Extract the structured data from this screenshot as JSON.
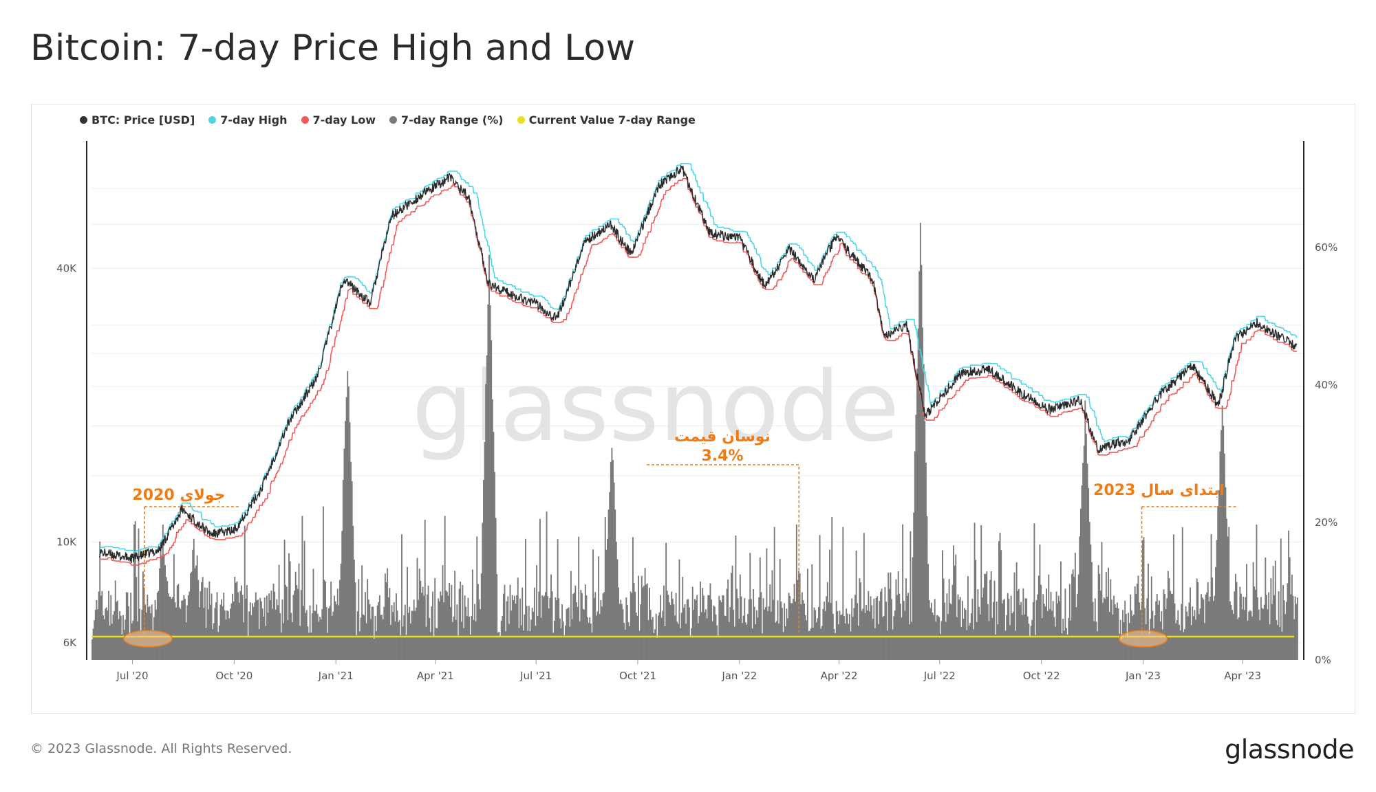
{
  "title": "Bitcoin: 7-day Price High and Low",
  "footer": {
    "copyright": "© 2023 Glassnode. All Rights Reserved.",
    "logo": "glassnode"
  },
  "watermark": "glassnode",
  "colors": {
    "price": "#2b2b2b",
    "high": "#4fd6e6",
    "low": "#f25a5a",
    "range": "#7a7a7a",
    "current": "#e8e020",
    "annotation": "#f07b14"
  },
  "legend": [
    {
      "label": "BTC: Price [USD]",
      "color": "#333333"
    },
    {
      "label": "7-day High",
      "color": "#4fd6e6"
    },
    {
      "label": "7-day Low",
      "color": "#f25a5a"
    },
    {
      "label": "7-day Range (%)",
      "color": "#7a7a7a"
    },
    {
      "label": "Current Value 7-day Range",
      "color": "#e8e020"
    }
  ],
  "chart_data": {
    "type": "line",
    "x_range": [
      "2020-05-25",
      "2023-05-25"
    ],
    "x_ticks": [
      "Jul '20",
      "Oct '20",
      "Jan '21",
      "Apr '21",
      "Jul '21",
      "Oct '21",
      "Jan '22",
      "Apr '22",
      "Jul '22",
      "Oct '22",
      "Jan '23",
      "Apr '23"
    ],
    "y_left": {
      "scale": "log",
      "range": [
        5500,
        75000
      ],
      "ticks": [
        "6K",
        "10K",
        "40K"
      ]
    },
    "y_right": {
      "scale": "linear",
      "range": [
        0,
        75
      ],
      "ticks": [
        "0%",
        "20%",
        "40%",
        "60%"
      ]
    },
    "price_series": {
      "name": "BTC: Price [USD]",
      "x": [
        "2020-06-01",
        "2020-07-01",
        "2020-07-25",
        "2020-08-15",
        "2020-09-10",
        "2020-10-01",
        "2020-10-25",
        "2020-11-20",
        "2020-12-15",
        "2021-01-08",
        "2021-02-01",
        "2021-02-20",
        "2021-03-15",
        "2021-04-14",
        "2021-05-01",
        "2021-05-19",
        "2021-06-10",
        "2021-07-01",
        "2021-07-20",
        "2021-08-15",
        "2021-09-06",
        "2021-09-25",
        "2021-10-20",
        "2021-11-10",
        "2021-12-05",
        "2022-01-01",
        "2022-01-24",
        "2022-02-15",
        "2022-03-10",
        "2022-03-29",
        "2022-05-01",
        "2022-05-12",
        "2022-06-01",
        "2022-06-18",
        "2022-07-20",
        "2022-08-15",
        "2022-09-10",
        "2022-10-10",
        "2022-11-05",
        "2022-11-21",
        "2022-12-20",
        "2023-01-15",
        "2023-02-15",
        "2023-03-10",
        "2023-03-25",
        "2023-04-14",
        "2023-05-20"
      ],
      "y": [
        9500,
        9200,
        9600,
        11800,
        10400,
        10600,
        13000,
        18500,
        23000,
        38000,
        33500,
        52000,
        57000,
        63500,
        57500,
        37000,
        35000,
        33500,
        31000,
        46000,
        50000,
        43000,
        61000,
        66500,
        48000,
        46500,
        36500,
        44000,
        38000,
        47000,
        38000,
        28500,
        30000,
        19000,
        23500,
        24000,
        21500,
        19500,
        20500,
        16000,
        16800,
        21000,
        24500,
        20000,
        28000,
        30300,
        26800
      ]
    },
    "range_series": {
      "name": "7-day Range (%)",
      "notable_peaks": {
        "2020-07-28": 17,
        "2020-08-25": 15,
        "2021-01-11": 42,
        "2021-05-19": 56,
        "2021-09-07": 30,
        "2022-06-13": 62,
        "2022-11-09": 35,
        "2023-03-13": 36
      }
    },
    "current_value_range": 3.4,
    "annotations": [
      {
        "text": "جولای 2020",
        "date": "2020-07-15"
      },
      {
        "text": "نوسان قیمت",
        "sub": "3.4%",
        "date": "2022-02-20"
      },
      {
        "text": "ابتدای سال 2023",
        "date": "2023-01-01"
      }
    ]
  }
}
